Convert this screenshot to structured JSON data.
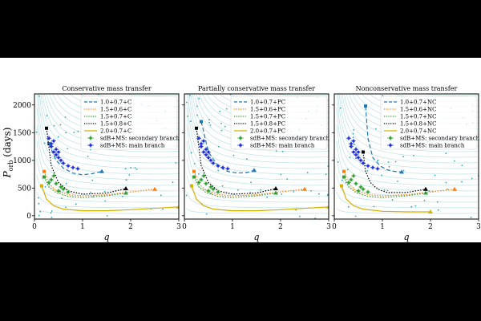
{
  "figure": {
    "ylabel_main": "P",
    "ylabel_sub": "orb",
    "ylabel_unit": " (days)",
    "xlabel": "q"
  },
  "colors": {
    "c1": "#1f77b4",
    "c2": "#ff7f0e",
    "c3": "#2ca02c",
    "c4": "#000000",
    "c5": "#d4b000",
    "secondary": "#2ca02c",
    "main": "#1f2fd6",
    "background_lines": "#a8d5dc",
    "background_dots": "#2ca4b4"
  },
  "chart_data": [
    {
      "type": "line",
      "title": "Conservative mass transfer",
      "xlim": [
        0,
        3
      ],
      "ylim": [
        -60,
        2200
      ],
      "xticks": [
        "0",
        "1",
        "2",
        "3"
      ],
      "yticks": [
        "0",
        "500",
        "1000",
        "1500",
        "2000"
      ],
      "legend_position": "top-right",
      "series": [
        {
          "name": "1.0+0.7+C",
          "style": "dashed",
          "color_key": "c1",
          "x": [
            0.3,
            0.45,
            0.6,
            0.8,
            1.0,
            1.2,
            1.4
          ],
          "y": [
            1300,
            1000,
            860,
            770,
            740,
            760,
            800
          ]
        },
        {
          "name": "1.5+0.6+C",
          "style": "dotted",
          "color_key": "c2",
          "x": [
            0.2,
            0.3,
            0.45,
            0.7,
            1.0,
            1.5,
            2.0,
            2.5
          ],
          "y": [
            800,
            580,
            450,
            380,
            360,
            380,
            430,
            480
          ]
        },
        {
          "name": "1.5+0.7+C",
          "style": "dotted",
          "color_key": "c3",
          "x": [
            0.2,
            0.3,
            0.45,
            0.7,
            1.0,
            1.5,
            1.9
          ],
          "y": [
            700,
            520,
            420,
            350,
            330,
            360,
            410
          ]
        },
        {
          "name": "1.5+0.8+C",
          "style": "dotted",
          "color_key": "c4",
          "x": [
            0.25,
            0.35,
            0.5,
            0.7,
            1.0,
            1.5,
            1.9
          ],
          "y": [
            1580,
            900,
            600,
            450,
            390,
            410,
            490
          ]
        },
        {
          "name": "2.0+0.7+C",
          "style": "solid",
          "color_key": "c5",
          "x": [
            0.15,
            0.25,
            0.4,
            0.6,
            1.0,
            1.5,
            2.0,
            3.0
          ],
          "y": [
            540,
            300,
            180,
            120,
            90,
            90,
            110,
            160
          ]
        }
      ],
      "markers": [
        {
          "series": "secondary",
          "x": [
            0.35,
            0.45,
            0.55,
            0.6,
            0.7,
            0.4,
            0.5,
            0.3
          ],
          "y": [
            650,
            580,
            520,
            480,
            430,
            720,
            450,
            600
          ]
        },
        {
          "series": "main",
          "x": [
            0.3,
            0.35,
            0.4,
            0.45,
            0.5,
            0.55,
            0.6,
            0.7,
            0.8,
            0.9,
            0.35,
            0.45,
            0.4,
            0.5
          ],
          "y": [
            1400,
            1250,
            1150,
            1100,
            1050,
            1000,
            950,
            900,
            870,
            850,
            1300,
            1200,
            1350,
            1150
          ]
        }
      ],
      "legend": [
        "1.0+0.7+C",
        "1.5+0.6+C",
        "1.5+0.7+C",
        "1.5+0.8+C",
        "2.0+0.7+C",
        "sdB+MS: secondary branch",
        "sdB+MS: main branch"
      ]
    },
    {
      "type": "line",
      "title": "Partially conservative mass transfer",
      "xlim": [
        0,
        3
      ],
      "ylim": [
        -60,
        2200
      ],
      "xticks": [
        "0",
        "1",
        "2",
        "3"
      ],
      "yticks": [],
      "legend_position": "top-right",
      "series": [
        {
          "name": "1.0+0.7+PC",
          "style": "dashed",
          "color_key": "c1",
          "x": [
            0.35,
            0.5,
            0.7,
            0.9,
            1.1,
            1.3,
            1.45
          ],
          "y": [
            1700,
            1150,
            900,
            800,
            770,
            780,
            820
          ]
        },
        {
          "name": "1.5+0.6+PC",
          "style": "dotted",
          "color_key": "c2",
          "x": [
            0.2,
            0.3,
            0.45,
            0.7,
            1.0,
            1.5,
            2.0,
            2.5
          ],
          "y": [
            800,
            580,
            450,
            380,
            360,
            380,
            430,
            480
          ]
        },
        {
          "name": "1.5+0.7+PC",
          "style": "dotted",
          "color_key": "c3",
          "x": [
            0.2,
            0.3,
            0.45,
            0.7,
            1.0,
            1.5,
            1.9
          ],
          "y": [
            700,
            520,
            420,
            350,
            330,
            360,
            410
          ]
        },
        {
          "name": "1.5+0.8+PC",
          "style": "dotted",
          "color_key": "c4",
          "x": [
            0.25,
            0.35,
            0.5,
            0.7,
            1.0,
            1.5,
            1.9
          ],
          "y": [
            1580,
            900,
            600,
            450,
            390,
            410,
            490
          ]
        },
        {
          "name": "2.0+0.7+PC",
          "style": "solid",
          "color_key": "c5",
          "x": [
            0.15,
            0.25,
            0.4,
            0.6,
            1.0,
            1.5,
            2.0,
            3.0
          ],
          "y": [
            540,
            300,
            180,
            120,
            90,
            90,
            110,
            160
          ]
        }
      ],
      "markers": [
        {
          "series": "secondary",
          "x": [
            0.35,
            0.45,
            0.55,
            0.6,
            0.7,
            0.4,
            0.5,
            0.3
          ],
          "y": [
            650,
            580,
            520,
            480,
            430,
            720,
            450,
            600
          ]
        },
        {
          "series": "main",
          "x": [
            0.3,
            0.35,
            0.4,
            0.45,
            0.5,
            0.55,
            0.6,
            0.7,
            0.8,
            0.9,
            0.35,
            0.45,
            0.4,
            0.5
          ],
          "y": [
            1400,
            1250,
            1150,
            1100,
            1050,
            1000,
            950,
            900,
            870,
            850,
            1300,
            1200,
            1350,
            1150
          ]
        }
      ],
      "legend": [
        "1.0+0.7+PC",
        "1.5+0.6+PC",
        "1.5+0.7+PC",
        "1.5+0.8+PC",
        "2.0+0.7+PC",
        "sdB+MS: secondary branch",
        "sdB+MS: main branch"
      ]
    },
    {
      "type": "line",
      "title": "Nonconservative mass transfer",
      "xlim": [
        0,
        3
      ],
      "ylim": [
        -60,
        2200
      ],
      "xticks": [
        "0",
        "1",
        "2",
        "3"
      ],
      "yticks": [],
      "legend_position": "top-right",
      "series": [
        {
          "name": "1.0+0.7+NC",
          "style": "dashed",
          "color_key": "c1",
          "x": [
            0.65,
            0.7,
            0.8,
            0.95,
            1.1,
            1.25,
            1.4
          ],
          "y": [
            1980,
            1400,
            1050,
            900,
            830,
            800,
            790
          ]
        },
        {
          "name": "1.5+0.6+NC",
          "style": "dotted",
          "color_key": "c2",
          "x": [
            0.2,
            0.3,
            0.45,
            0.7,
            1.0,
            1.5,
            2.0,
            2.5
          ],
          "y": [
            800,
            580,
            450,
            380,
            360,
            380,
            430,
            480
          ]
        },
        {
          "name": "1.5+0.7+NC",
          "style": "dotted",
          "color_key": "c3",
          "x": [
            0.2,
            0.3,
            0.45,
            0.7,
            1.0,
            1.5,
            1.9
          ],
          "y": [
            700,
            520,
            420,
            350,
            330,
            360,
            410
          ]
        },
        {
          "name": "1.5+0.8+NC",
          "style": "dotted",
          "color_key": "c4",
          "x": [
            0.6,
            0.65,
            0.75,
            0.9,
            1.1,
            1.5,
            1.9
          ],
          "y": [
            1150,
            800,
            600,
            480,
            420,
            420,
            480
          ]
        },
        {
          "name": "2.0+0.7+NC",
          "style": "solid",
          "color_key": "c5",
          "x": [
            0.15,
            0.25,
            0.4,
            0.6,
            1.0,
            1.5,
            2.0
          ],
          "y": [
            540,
            300,
            180,
            120,
            80,
            70,
            70
          ]
        }
      ],
      "markers": [
        {
          "series": "secondary",
          "x": [
            0.35,
            0.45,
            0.55,
            0.6,
            0.7,
            0.4,
            0.5,
            0.3
          ],
          "y": [
            650,
            580,
            520,
            480,
            430,
            720,
            450,
            600
          ]
        },
        {
          "series": "main",
          "x": [
            0.3,
            0.35,
            0.4,
            0.45,
            0.5,
            0.55,
            0.6,
            0.7,
            0.8,
            0.9,
            0.35,
            0.45,
            0.4,
            0.5
          ],
          "y": [
            1400,
            1250,
            1150,
            1100,
            1050,
            1000,
            950,
            900,
            870,
            850,
            1300,
            1200,
            1350,
            1150
          ]
        }
      ],
      "legend": [
        "1.0+0.7+NC",
        "1.5+0.6+NC",
        "1.5+0.7+NC",
        "1.5+0.8+NC",
        "2.0+0.7+NC",
        "sdB+MS: secondary branch",
        "sdB+MS: main branch"
      ]
    }
  ]
}
